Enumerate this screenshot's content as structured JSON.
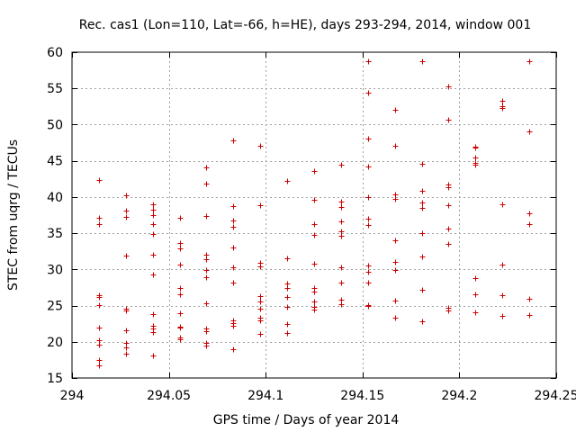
{
  "chart_data": {
    "type": "scatter",
    "title": "Rec. cas1 (Lon=110, Lat=-66, h=HE), days 293-294, 2014, window 001",
    "xlabel": "GPS time / Days of year 2014",
    "ylabel": "STEC from uqrg / TECUs",
    "xlim": [
      294,
      294.25
    ],
    "ylim": [
      15,
      60
    ],
    "xticks": [
      294,
      294.05,
      294.1,
      294.15,
      294.2,
      294.25
    ],
    "xtick_labels": [
      "294",
      "294.05",
      "294.1",
      "294.15",
      "294.2",
      "294.25"
    ],
    "yticks": [
      15,
      20,
      25,
      30,
      35,
      40,
      45,
      50,
      55,
      60
    ],
    "ytick_labels": [
      "15",
      "20",
      "25",
      "30",
      "35",
      "40",
      "45",
      "50",
      "55",
      "60"
    ],
    "grid": true,
    "marker": "+",
    "color": "#cc0000",
    "series": [
      {
        "name": "STEC",
        "points": [
          [
            294.0139,
            42.4
          ],
          [
            294.0139,
            37.1
          ],
          [
            294.0139,
            36.3
          ],
          [
            294.0139,
            26.4
          ],
          [
            294.0139,
            26.2
          ],
          [
            294.0139,
            25.1
          ],
          [
            294.0139,
            22.0
          ],
          [
            294.0139,
            20.2
          ],
          [
            294.0139,
            19.6
          ],
          [
            294.0139,
            17.5
          ],
          [
            294.0139,
            16.7
          ],
          [
            294.0278,
            40.2
          ],
          [
            294.0278,
            38.1
          ],
          [
            294.0278,
            37.3
          ],
          [
            294.0278,
            31.9
          ],
          [
            294.0278,
            24.6
          ],
          [
            294.0278,
            24.3
          ],
          [
            294.0278,
            21.6
          ],
          [
            294.0278,
            19.8
          ],
          [
            294.0278,
            19.2
          ],
          [
            294.0278,
            18.4
          ],
          [
            294.0417,
            39.0
          ],
          [
            294.0417,
            38.2
          ],
          [
            294.0417,
            37.5
          ],
          [
            294.0417,
            36.3
          ],
          [
            294.0417,
            34.9
          ],
          [
            294.0417,
            32.0
          ],
          [
            294.0417,
            29.3
          ],
          [
            294.0417,
            23.8
          ],
          [
            294.0417,
            22.2
          ],
          [
            294.0417,
            21.8
          ],
          [
            294.0417,
            21.3
          ],
          [
            294.0417,
            18.1
          ],
          [
            294.0556,
            37.1
          ],
          [
            294.0556,
            33.6
          ],
          [
            294.0556,
            32.9
          ],
          [
            294.0556,
            30.7
          ],
          [
            294.0556,
            27.4
          ],
          [
            294.0556,
            26.6
          ],
          [
            294.0556,
            24.0
          ],
          [
            294.0556,
            22.1
          ],
          [
            294.0556,
            21.9
          ],
          [
            294.0556,
            20.6
          ],
          [
            294.0556,
            20.4
          ],
          [
            294.0694,
            44.1
          ],
          [
            294.0694,
            41.9
          ],
          [
            294.0694,
            37.4
          ],
          [
            294.0694,
            32.0
          ],
          [
            294.0694,
            31.4
          ],
          [
            294.0694,
            29.9
          ],
          [
            294.0694,
            28.9
          ],
          [
            294.0694,
            25.3
          ],
          [
            294.0694,
            21.8
          ],
          [
            294.0694,
            21.5
          ],
          [
            294.0694,
            19.8
          ],
          [
            294.0694,
            19.5
          ],
          [
            294.0833,
            47.8
          ],
          [
            294.0833,
            38.8
          ],
          [
            294.0833,
            36.7
          ],
          [
            294.0833,
            35.9
          ],
          [
            294.0833,
            33.0
          ],
          [
            294.0833,
            30.3
          ],
          [
            294.0833,
            28.2
          ],
          [
            294.0833,
            23.0
          ],
          [
            294.0833,
            22.6
          ],
          [
            294.0833,
            22.2
          ],
          [
            294.0833,
            19.0
          ],
          [
            294.0972,
            47.1
          ],
          [
            294.0972,
            38.9
          ],
          [
            294.0972,
            30.9
          ],
          [
            294.0972,
            30.4
          ],
          [
            294.0972,
            26.3
          ],
          [
            294.0972,
            25.6
          ],
          [
            294.0972,
            24.6
          ],
          [
            294.0972,
            23.3
          ],
          [
            294.0972,
            23.0
          ],
          [
            294.0972,
            21.1
          ],
          [
            294.1111,
            42.2
          ],
          [
            294.1111,
            31.5
          ],
          [
            294.1111,
            28.0
          ],
          [
            294.1111,
            27.4
          ],
          [
            294.1111,
            26.2
          ],
          [
            294.1111,
            24.8
          ],
          [
            294.1111,
            22.4
          ],
          [
            294.1111,
            21.2
          ],
          [
            294.125,
            43.6
          ],
          [
            294.125,
            39.6
          ],
          [
            294.125,
            36.3
          ],
          [
            294.125,
            34.8
          ],
          [
            294.125,
            30.8
          ],
          [
            294.125,
            27.4
          ],
          [
            294.125,
            26.9
          ],
          [
            294.125,
            25.6
          ],
          [
            294.125,
            24.8
          ],
          [
            294.125,
            24.5
          ],
          [
            294.1389,
            44.4
          ],
          [
            294.1389,
            39.4
          ],
          [
            294.1389,
            38.6
          ],
          [
            294.1389,
            36.6
          ],
          [
            294.1389,
            35.3
          ],
          [
            294.1389,
            34.7
          ],
          [
            294.1389,
            30.3
          ],
          [
            294.1389,
            28.2
          ],
          [
            294.1389,
            25.8
          ],
          [
            294.1389,
            25.2
          ],
          [
            294.1528,
            58.7
          ],
          [
            294.1528,
            54.4
          ],
          [
            294.1528,
            48.1
          ],
          [
            294.1528,
            44.2
          ],
          [
            294.1528,
            40.0
          ],
          [
            294.1528,
            37.0
          ],
          [
            294.1528,
            36.1
          ],
          [
            294.1528,
            30.5
          ],
          [
            294.1528,
            29.7
          ],
          [
            294.1528,
            28.2
          ],
          [
            294.1528,
            25.1
          ],
          [
            294.1528,
            24.9
          ],
          [
            294.1667,
            52.1
          ],
          [
            294.1667,
            47.1
          ],
          [
            294.1667,
            40.3
          ],
          [
            294.1667,
            39.7
          ],
          [
            294.1667,
            34.0
          ],
          [
            294.1667,
            31.0
          ],
          [
            294.1667,
            29.9
          ],
          [
            294.1667,
            25.7
          ],
          [
            294.1667,
            23.3
          ],
          [
            294.1806,
            58.7
          ],
          [
            294.1806,
            44.6
          ],
          [
            294.1806,
            40.9
          ],
          [
            294.1806,
            39.3
          ],
          [
            294.1806,
            38.5
          ],
          [
            294.1806,
            35.0
          ],
          [
            294.1806,
            31.8
          ],
          [
            294.1806,
            27.2
          ],
          [
            294.1806,
            22.8
          ],
          [
            294.1944,
            55.3
          ],
          [
            294.1944,
            50.7
          ],
          [
            294.1944,
            41.7
          ],
          [
            294.1944,
            41.4
          ],
          [
            294.1944,
            38.9
          ],
          [
            294.1944,
            35.6
          ],
          [
            294.1944,
            33.5
          ],
          [
            294.1944,
            24.7
          ],
          [
            294.1944,
            24.3
          ],
          [
            294.2083,
            47.0
          ],
          [
            294.2083,
            46.8
          ],
          [
            294.2083,
            45.4
          ],
          [
            294.2083,
            44.7
          ],
          [
            294.2083,
            44.4
          ],
          [
            294.2083,
            28.8
          ],
          [
            294.2083,
            26.6
          ],
          [
            294.2083,
            24.1
          ],
          [
            294.2222,
            53.3
          ],
          [
            294.2222,
            52.6
          ],
          [
            294.2222,
            52.3
          ],
          [
            294.2222,
            39.0
          ],
          [
            294.2222,
            30.7
          ],
          [
            294.2222,
            26.4
          ],
          [
            294.2222,
            23.6
          ],
          [
            294.2361,
            58.8
          ],
          [
            294.2361,
            49.1
          ],
          [
            294.2361,
            37.8
          ],
          [
            294.2361,
            36.2
          ],
          [
            294.2361,
            26.0
          ],
          [
            294.2361,
            23.7
          ]
        ]
      }
    ]
  }
}
